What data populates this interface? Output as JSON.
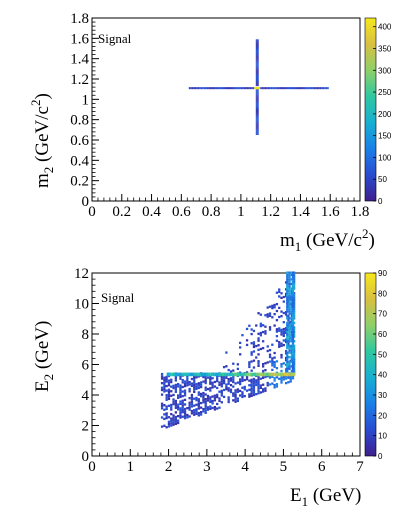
{
  "chart_data": [
    {
      "type": "heatmap",
      "tag": "Signal",
      "xlabel_main": "m",
      "xlabel_sub": "1",
      "xlabel_unit": " (GeV/c",
      "xlabel_sup": "2",
      "xlabel_close": ")",
      "ylabel_main": "m",
      "ylabel_sub": "2",
      "ylabel_unit": " (GeV/c",
      "ylabel_sup": "2",
      "ylabel_close": ")",
      "xlim": [
        0,
        1.8
      ],
      "ylim": [
        0,
        1.8
      ],
      "xticks": [
        "0",
        "0.2",
        "0.4",
        "0.6",
        "0.8",
        "1",
        "1.2",
        "1.4",
        "1.6",
        "1.8"
      ],
      "yticks": [
        "0",
        "0.2",
        "0.4",
        "0.6",
        "0.8",
        "1",
        "1.2",
        "1.4",
        "1.6",
        "1.8"
      ],
      "zlim": [
        0,
        420
      ],
      "zticks": [
        "0",
        "50",
        "100",
        "150",
        "200",
        "250",
        "300",
        "350",
        "400"
      ],
      "horizontal_band": {
        "x": [
          0.65,
          1.59
        ],
        "y": [
          1.1,
          1.12
        ]
      },
      "vertical_band": {
        "x": [
          1.1,
          1.12
        ],
        "y": [
          0.65,
          1.59
        ]
      },
      "peak": {
        "x": 1.11,
        "y": 1.11
      },
      "colormap": [
        "#3f1e8e",
        "#2a4bd1",
        "#1a80e8",
        "#18b0d2",
        "#2ec8a0",
        "#8ed068",
        "#d8c040",
        "#f6e81c"
      ]
    },
    {
      "type": "heatmap",
      "tag": "Signal",
      "xlabel_main": "E",
      "xlabel_sub": "1",
      "xlabel_unit": " (GeV)",
      "ylabel_main": "E",
      "ylabel_sub": "2",
      "ylabel_unit": " (GeV)",
      "xlim": [
        0,
        7
      ],
      "ylim": [
        0,
        12
      ],
      "xticks": [
        "0",
        "1",
        "2",
        "3",
        "4",
        "5",
        "6",
        "7"
      ],
      "yticks": [
        "0",
        "2",
        "4",
        "6",
        "8",
        "10",
        "12"
      ],
      "zlim": [
        0,
        90
      ],
      "zticks": [
        "0",
        "10",
        "20",
        "30",
        "40",
        "50",
        "60",
        "70",
        "80",
        "90"
      ],
      "threshold_line": {
        "x": [
          1.95,
          5.25
        ],
        "y": 5.35
      },
      "vertical_edge": {
        "x": 5.25,
        "y": [
          5.35,
          12
        ]
      },
      "colormap": [
        "#3f1e8e",
        "#2a4bd1",
        "#1a80e8",
        "#18b0d2",
        "#2ec8a0",
        "#8ed068",
        "#d8c040",
        "#f6e81c"
      ]
    }
  ]
}
